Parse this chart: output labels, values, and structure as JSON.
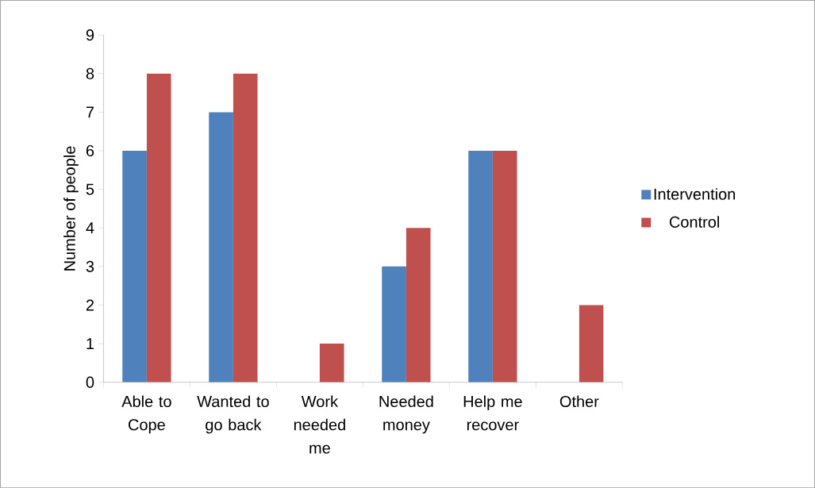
{
  "chart_data": {
    "type": "bar",
    "ylabel": "Number of people",
    "categories": [
      "Able to Cope",
      "Wanted to go back",
      "Work needed me",
      "Needed money",
      "Help me recover",
      "Other"
    ],
    "series": [
      {
        "name": "Intervention",
        "color": "#4f81bd",
        "values": [
          6,
          7,
          0,
          3,
          6,
          0
        ]
      },
      {
        "name": "Control",
        "color": "#c0504d",
        "values": [
          8,
          8,
          1,
          4,
          6,
          2
        ]
      }
    ],
    "ylim": [
      0,
      9
    ],
    "yticks": [
      0,
      1,
      2,
      3,
      4,
      5,
      6,
      7,
      8,
      9
    ],
    "grid": false,
    "legend": "right"
  }
}
